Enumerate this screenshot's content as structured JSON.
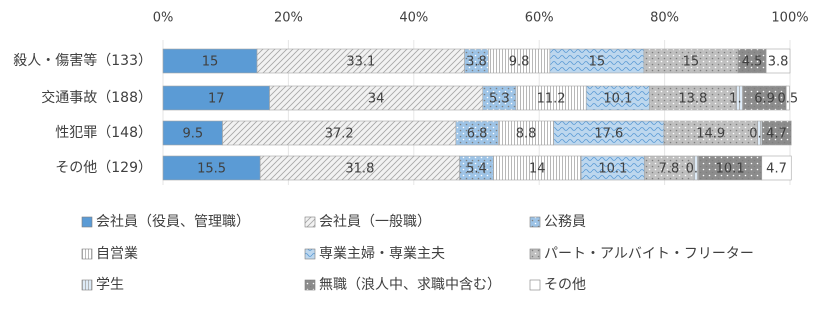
{
  "chart_data": {
    "type": "stacked-bar-horizontal",
    "categories": [
      "殺人・傷害等（133）",
      "交通事故（188）",
      "性犯罪（148）",
      "その他（129）"
    ],
    "xlim": [
      0,
      100
    ],
    "xticks": [
      {
        "value": 0,
        "label": "0%"
      },
      {
        "value": 20,
        "label": "20%"
      },
      {
        "value": 40,
        "label": "40%"
      },
      {
        "value": 60,
        "label": "60%"
      },
      {
        "value": 80,
        "label": "80%"
      },
      {
        "value": 100,
        "label": "100%"
      }
    ],
    "grid": true,
    "series": [
      {
        "name": "会社員（役員、管理職）",
        "color": "#5b9bd5",
        "pattern": "solid",
        "values": [
          15.0,
          17.0,
          9.5,
          15.5
        ]
      },
      {
        "name": "会社員（一般職）",
        "color": "#f2f2f2",
        "pattern": "diagonal",
        "values": [
          33.1,
          34.0,
          37.2,
          31.8
        ]
      },
      {
        "name": "公務員",
        "color": "#9dc3e6",
        "pattern": "dots",
        "values": [
          3.8,
          5.3,
          6.8,
          5.4
        ]
      },
      {
        "name": "自営業",
        "color": "#ffffff",
        "pattern": "vertical",
        "values": [
          9.8,
          11.2,
          8.8,
          14.0
        ]
      },
      {
        "name": "専業主婦・専業主夫",
        "color": "#bdd7ee",
        "pattern": "wave",
        "values": [
          15.0,
          10.1,
          17.6,
          10.1
        ]
      },
      {
        "name": "パート・アルバイト・フリーター",
        "color": "#bfbfbf",
        "pattern": "dots",
        "values": [
          15.0,
          13.8,
          14.9,
          7.8
        ]
      },
      {
        "name": "学生",
        "color": "#deebf7",
        "pattern": "vertical",
        "values": [
          null,
          1.1,
          0.7,
          0.8
        ]
      },
      {
        "name": "無職（浪人中、求職中含む）",
        "color": "#8c8c8c",
        "pattern": "dots",
        "values": [
          4.5,
          6.9,
          4.7,
          10.1
        ]
      },
      {
        "name": "その他",
        "color": "#ffffff",
        "pattern": "solid",
        "values": [
          3.8,
          0.5,
          null,
          4.7
        ]
      }
    ]
  }
}
